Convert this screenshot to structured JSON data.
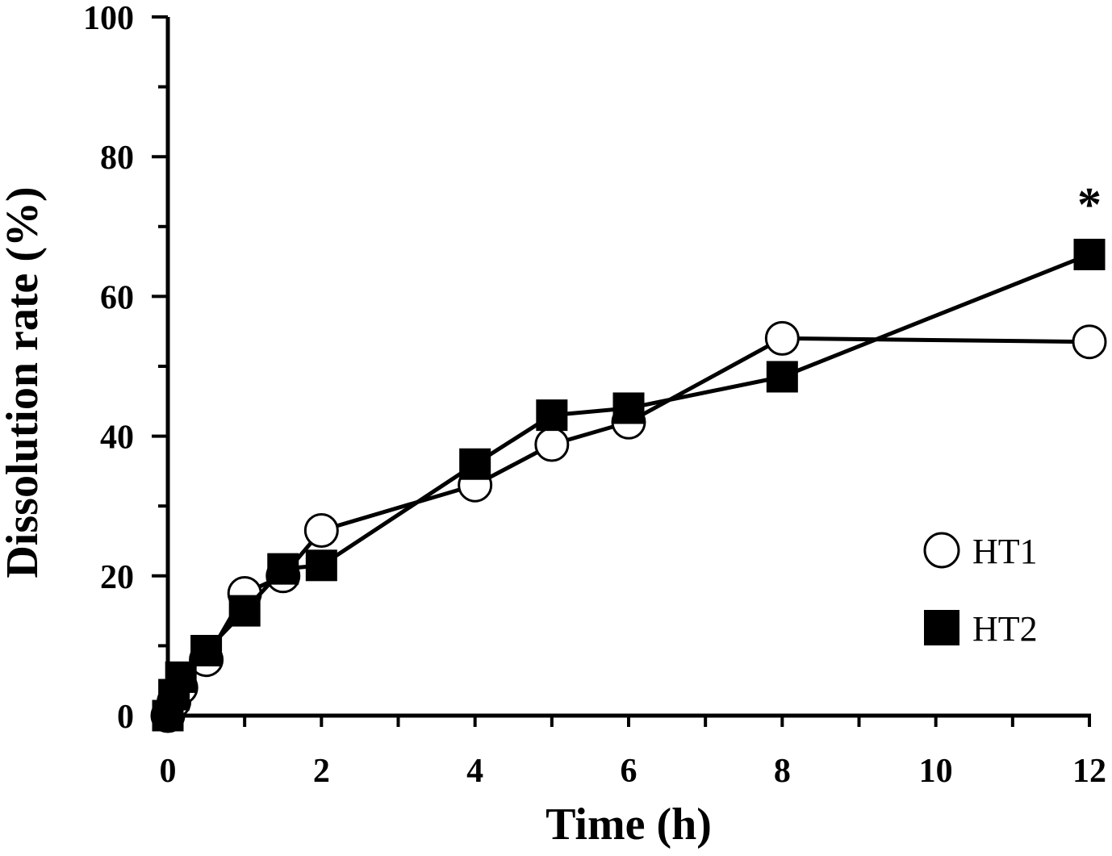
{
  "chart_data": {
    "type": "line",
    "title": "",
    "xlabel": "Time (h)",
    "ylabel": "Dissolution rate (%)",
    "xlim": [
      0,
      12
    ],
    "ylim": [
      0,
      100
    ],
    "xticks": [
      0,
      2,
      4,
      6,
      8,
      10,
      12
    ],
    "yticks": [
      0,
      20,
      40,
      60,
      80,
      100
    ],
    "grid": false,
    "legend_position": "bottom-right",
    "series": [
      {
        "name": "HT1",
        "marker": "open-circle",
        "x": [
          0,
          0.08,
          0.17,
          0.5,
          1,
          1.5,
          2,
          4,
          5,
          6,
          8,
          12
        ],
        "y": [
          0,
          2,
          4,
          8,
          17.5,
          20,
          26.5,
          33,
          38.8,
          42,
          54,
          53.5
        ]
      },
      {
        "name": "HT2",
        "marker": "filled-square",
        "x": [
          0,
          0.08,
          0.17,
          0.5,
          1,
          1.5,
          2,
          4,
          5,
          6,
          8,
          12
        ],
        "y": [
          0,
          3,
          5.5,
          9.3,
          15,
          21,
          21.5,
          36,
          43,
          44,
          48.5,
          66
        ]
      }
    ],
    "annotations": [
      {
        "text": "*",
        "x": 12,
        "y": 66,
        "placement": "above"
      }
    ]
  }
}
